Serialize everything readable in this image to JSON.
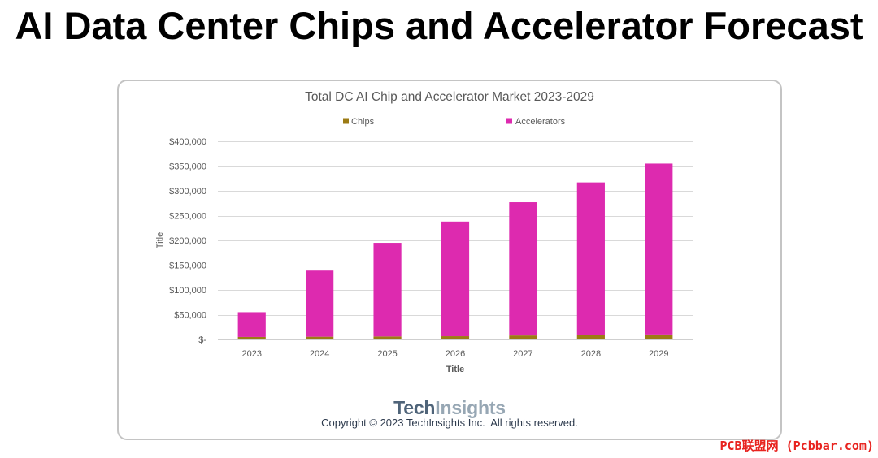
{
  "slide": {
    "title": "AI Data Center Chips and Accelerator Forecast"
  },
  "chart_data": {
    "type": "bar",
    "stacked": true,
    "title": "Total DC AI Chip and Accelerator Market 2023-2029",
    "xlabel": "Title",
    "ylabel": "Title",
    "categories": [
      "2023",
      "2024",
      "2025",
      "2026",
      "2027",
      "2028",
      "2029"
    ],
    "series": [
      {
        "name": "Chips",
        "color": "#9c7b14",
        "values": [
          5000,
          5500,
          6000,
          6500,
          8000,
          9500,
          10000
        ]
      },
      {
        "name": "Accelerators",
        "color": "#dd2aaf",
        "values": [
          50000,
          133500,
          189000,
          231500,
          269000,
          307500,
          345000
        ]
      }
    ],
    "ylim": [
      0,
      400000
    ],
    "y_ticks": [
      0,
      50000,
      100000,
      150000,
      200000,
      250000,
      300000,
      350000,
      400000
    ],
    "y_tick_labels": [
      "$-",
      "$50,000",
      "$100,000",
      "$150,000",
      "$200,000",
      "$250,000",
      "$300,000",
      "$350,000",
      "$400,000"
    ],
    "grid": true,
    "legend_position": "top"
  },
  "footer": {
    "logo": {
      "part1": "Tech",
      "part2": "Insights",
      "color_part1": "#4f6479",
      "color_part2": "#97a7b4"
    },
    "copyright": "Copyright © 2023 TechInsights Inc.  All rights reserved."
  },
  "watermark": {
    "text": "PCB联盟网 (Pcbbar.com)",
    "color": "#e8231f"
  }
}
